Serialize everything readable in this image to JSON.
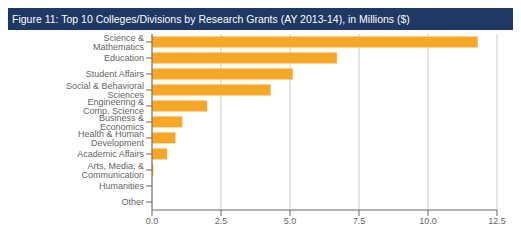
{
  "chart_data": {
    "type": "bar",
    "title": "Figure 11: Top 10 Colleges/Divisions by Research Grants (AY 2013-14), in Millions ($)",
    "orientation": "horizontal",
    "categories": [
      "Science & Mathematics",
      "Education",
      "Student Affairs",
      "Social & Behavioral Sciences",
      "Engineering & Comp. Science",
      "Business & Economics",
      "Health & Human Development",
      "Academic Affairs",
      "Arts, Media, & Communication",
      "Humanities",
      "Other"
    ],
    "values": [
      11.8,
      6.7,
      5.1,
      4.3,
      2.0,
      1.1,
      0.85,
      0.55,
      0.05,
      0.0,
      0.0
    ],
    "color": "#F5A828",
    "xlim": [
      0,
      12.5
    ],
    "xticks": [
      {
        "value": 0,
        "label": "0.0"
      },
      2.5,
      {
        "value": 5,
        "label": "5.0"
      },
      {
        "value": 7.5,
        "label": "7.5"
      },
      {
        "value": 10,
        "label": "10.0"
      },
      12.5
    ],
    "grid": true
  }
}
